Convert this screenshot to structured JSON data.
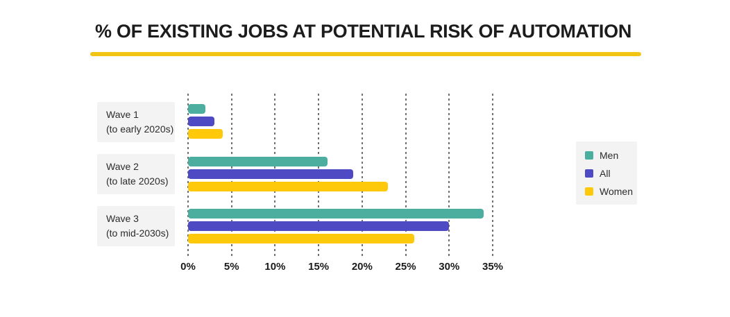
{
  "title": "% OF EXISTING JOBS AT POTENTIAL RISK OF AUTOMATION",
  "colors": {
    "title_text": "#1C1C1C",
    "underline_gold": "#F2C414",
    "men_teal": "#4BAE9F",
    "all_indigo": "#4D4AC4",
    "women_yellow": "#FFC90B",
    "label_box_bg": "#F3F3F3",
    "legend_box_bg": "#F3F3F3",
    "gridline": "#6F6F6F",
    "axis_text": "#1B1B1B"
  },
  "legend": {
    "items": [
      {
        "label": "Men",
        "color": "#4BAE9F"
      },
      {
        "label": "All",
        "color": "#4D4AC4"
      },
      {
        "label": "Women",
        "color": "#FFC90B"
      }
    ]
  },
  "chart_data": {
    "type": "bar",
    "orientation": "horizontal",
    "title": "% OF EXISTING JOBS AT POTENTIAL RISK OF AUTOMATION",
    "categories": [
      {
        "line1": "Wave 1",
        "line2": "(to early 2020s)"
      },
      {
        "line1": "Wave 2",
        "line2": "(to late 2020s)"
      },
      {
        "line1": "Wave 3",
        "line2": "(to mid-2030s)"
      }
    ],
    "series": [
      {
        "name": "Men",
        "color": "#4BAE9F",
        "values": [
          2,
          16,
          34
        ]
      },
      {
        "name": "All",
        "color": "#4D4AC4",
        "values": [
          3,
          19,
          30
        ]
      },
      {
        "name": "Women",
        "color": "#FFC90B",
        "values": [
          4,
          23,
          26
        ]
      }
    ],
    "x_ticks": [
      "0%",
      "5%",
      "10%",
      "15%",
      "20%",
      "25%",
      "30%",
      "35%"
    ],
    "xlim": [
      0,
      35
    ],
    "xlabel": "",
    "ylabel": "",
    "grid": "vertical-dotted",
    "legend_position": "right"
  }
}
